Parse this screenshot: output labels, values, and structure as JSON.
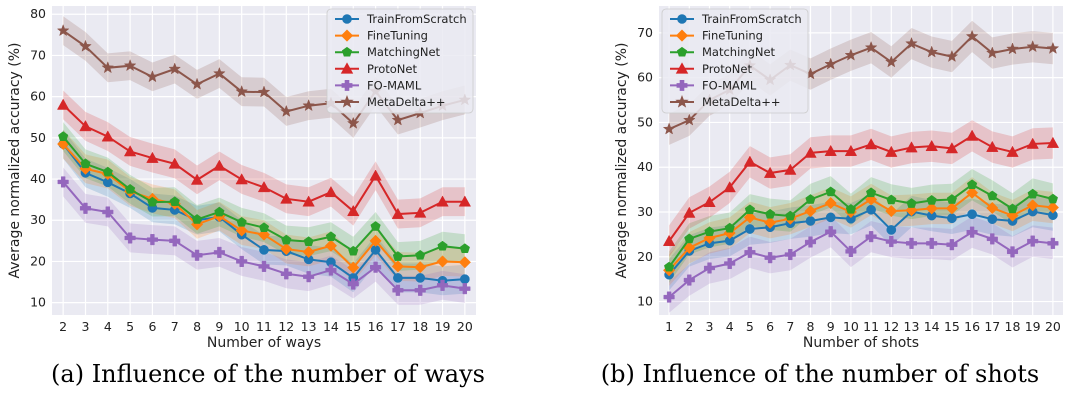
{
  "figure": {
    "captions": [
      "(a) Influence of the number of ways",
      "(b) Influence of the number of shots"
    ]
  },
  "colors": {
    "TrainFromScratch": "#1f77b4",
    "FineTuning": "#ff7f0e",
    "MatchingNet": "#2ca02c",
    "ProtoNet": "#d62728",
    "FO-MAML": "#9467bd",
    "MetaDelta++": "#8c564b",
    "plot_background": "#eaeaf2",
    "grid": "#ffffff"
  },
  "chart_data": [
    {
      "type": "line",
      "xlabel": "Number of ways",
      "ylabel": "Average normalized accuracy (%)",
      "x": [
        2,
        3,
        4,
        5,
        6,
        7,
        8,
        9,
        10,
        11,
        12,
        13,
        14,
        15,
        16,
        17,
        18,
        19,
        20
      ],
      "xlim": [
        1.5,
        20.5
      ],
      "ylim": [
        7,
        82
      ],
      "yticks": [
        10,
        20,
        30,
        40,
        50,
        60,
        70,
        80
      ],
      "grid": true,
      "legend": "top-right",
      "shaded_confidence_bands": true,
      "series": [
        {
          "name": "TrainFromScratch",
          "marker": "circle",
          "values": [
            48.5,
            41.5,
            39.2,
            36.5,
            33,
            32.5,
            30,
            30.8,
            26.5,
            22.8,
            22.5,
            20.5,
            19.8,
            16,
            22.8,
            16,
            16,
            15.3,
            15.7
          ]
        },
        {
          "name": "FineTuning",
          "marker": "diamond",
          "values": [
            48.5,
            42.5,
            41.2,
            37,
            35.2,
            34,
            29,
            31,
            27.5,
            26.5,
            23,
            22.3,
            23.8,
            18.5,
            25,
            18.8,
            18.6,
            20,
            19.8
          ]
        },
        {
          "name": "MatchingNet",
          "marker": "pentagon",
          "values": [
            50.3,
            43.7,
            41.7,
            37.5,
            34.4,
            34.5,
            30.2,
            32,
            29.5,
            28.2,
            25.2,
            24.8,
            26,
            22.5,
            28.5,
            21.2,
            21.5,
            23.7,
            23.1
          ]
        },
        {
          "name": "ProtoNet",
          "marker": "triangle",
          "values": [
            58,
            52.8,
            50.3,
            46.7,
            45.1,
            43.7,
            39.8,
            43.2,
            39.9,
            38,
            35.2,
            34.5,
            36.8,
            32.2,
            40.8,
            31.5,
            31.8,
            34.5,
            34.5
          ]
        },
        {
          "name": "FO-MAML",
          "marker": "plus",
          "values": [
            39.3,
            32.9,
            32,
            25.7,
            25.3,
            25,
            21.5,
            22.2,
            20,
            18.8,
            17,
            16.3,
            17.9,
            14.5,
            18.6,
            13,
            13,
            14.2,
            13.4
          ]
        },
        {
          "name": "MetaDelta++",
          "marker": "star",
          "values": [
            76,
            72.2,
            67,
            67.5,
            64.8,
            66.7,
            63,
            65.6,
            61.2,
            61.1,
            56.4,
            57.8,
            58.4,
            53.5,
            61.3,
            54.3,
            56,
            57.8,
            59.2
          ]
        }
      ]
    },
    {
      "type": "line",
      "xlabel": "Number of shots",
      "ylabel": "Average normalized accuracy (%)",
      "x": [
        1,
        2,
        3,
        4,
        5,
        6,
        7,
        8,
        9,
        10,
        11,
        12,
        13,
        14,
        15,
        16,
        17,
        18,
        19,
        20
      ],
      "xlim": [
        0.5,
        20.5
      ],
      "ylim": [
        7,
        76
      ],
      "yticks": [
        10,
        20,
        30,
        40,
        50,
        60,
        70
      ],
      "grid": true,
      "legend": "top-left",
      "shaded_confidence_bands": true,
      "series": [
        {
          "name": "TrainFromScratch",
          "marker": "circle",
          "values": [
            16,
            21.3,
            23,
            23.6,
            26.2,
            26.6,
            27.5,
            28,
            28.8,
            28.5,
            30.5,
            26,
            30.1,
            29.2,
            28.6,
            29.5,
            28.4,
            28,
            30.1,
            29.3
          ]
        },
        {
          "name": "FineTuning",
          "marker": "diamond",
          "values": [
            17,
            22,
            24.2,
            25.3,
            28.8,
            27.6,
            28.5,
            30.2,
            32,
            30,
            32.8,
            30.2,
            30.4,
            30.8,
            30.8,
            34.3,
            30.9,
            29.2,
            31.5,
            31
          ]
        },
        {
          "name": "MatchingNet",
          "marker": "pentagon",
          "values": [
            17.7,
            24,
            25.6,
            26.4,
            30.5,
            29.5,
            29.1,
            32.8,
            34.5,
            30.6,
            34.3,
            32.7,
            31.9,
            32.6,
            32.8,
            36.1,
            33.6,
            30.7,
            34,
            32.9
          ]
        },
        {
          "name": "ProtoNet",
          "marker": "triangle",
          "values": [
            23.5,
            29.8,
            32.2,
            35.5,
            41.2,
            38.7,
            39.4,
            43.2,
            43.6,
            43.6,
            45.1,
            43.4,
            44.4,
            44.7,
            44.2,
            47,
            44.5,
            43.4,
            45.2,
            45.4
          ]
        },
        {
          "name": "FO-MAML",
          "marker": "plus",
          "values": [
            11,
            14.8,
            17.5,
            18.5,
            21,
            19.8,
            20.5,
            23.3,
            25.6,
            21.2,
            24.5,
            23.4,
            23,
            23,
            22.7,
            25.5,
            24,
            21.1,
            23.5,
            23
          ]
        },
        {
          "name": "MetaDelta++",
          "marker": "star",
          "values": [
            48.5,
            50.5,
            55,
            57.3,
            62.7,
            59.5,
            62.8,
            60.8,
            63,
            65,
            66.7,
            63.5,
            67.6,
            65.7,
            64.7,
            69.2,
            65.5,
            66.4,
            66.9,
            66.5
          ]
        }
      ]
    }
  ]
}
